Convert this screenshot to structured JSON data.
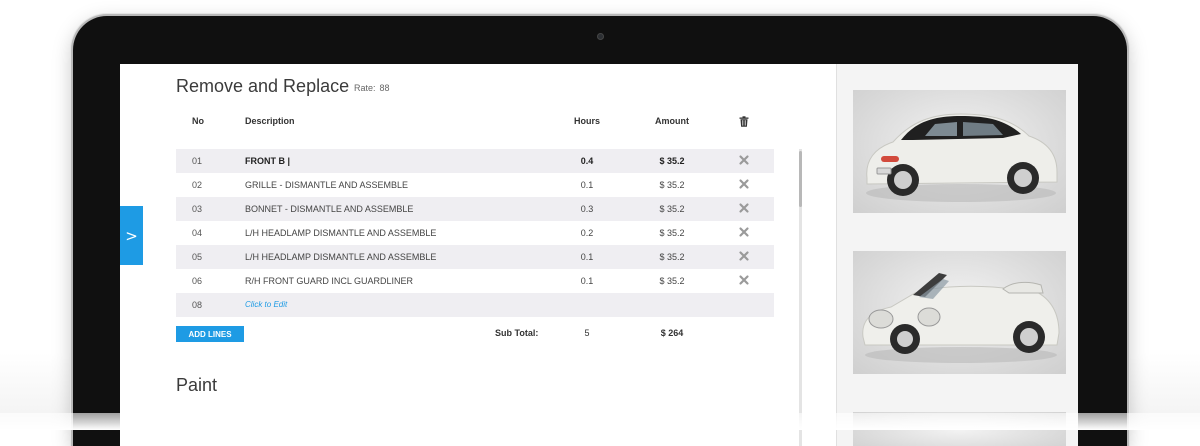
{
  "section": {
    "title": "Remove and Replace",
    "rate_label": "Rate:",
    "rate_value": "88"
  },
  "table": {
    "headers": {
      "no": "No",
      "description": "Description",
      "hours": "Hours",
      "amount": "Amount"
    },
    "rows": [
      {
        "no": "01",
        "description": "FRONT B |",
        "hours": "0.4",
        "amount": "$ 35.2"
      },
      {
        "no": "02",
        "description": "GRILLE - DISMANTLE AND ASSEMBLE",
        "hours": "0.1",
        "amount": "$ 35.2"
      },
      {
        "no": "03",
        "description": "BONNET - DISMANTLE AND ASSEMBLE",
        "hours": "0.3",
        "amount": "$ 35.2"
      },
      {
        "no": "04",
        "description": "L/H HEADLAMP DISMANTLE AND ASSEMBLE",
        "hours": "0.2",
        "amount": "$ 35.2"
      },
      {
        "no": "05",
        "description": "L/H HEADLAMP DISMANTLE AND ASSEMBLE",
        "hours": "0.1",
        "amount": "$ 35.2"
      },
      {
        "no": "06",
        "description": "R/H FRONT GUARD INCL GUARDLINER",
        "hours": "0.1",
        "amount": "$ 35.2"
      }
    ],
    "new_row": {
      "no": "08",
      "placeholder": "Click to Edit"
    }
  },
  "footer": {
    "add_lines_label": "ADD LINES",
    "subtotal_label": "Sub Total:",
    "subtotal_hours": "5",
    "subtotal_amount": "$ 264"
  },
  "paint": {
    "title": "Paint"
  },
  "side_tab": {
    "glyph": ">"
  },
  "icons": {
    "header_delete": "trash-icon",
    "row_delete": "close-icon",
    "side_tab": "chevron-right-icon"
  },
  "colors": {
    "accent": "#1e9be4",
    "row_alt": "#efeef2",
    "bezel": "#101010"
  }
}
